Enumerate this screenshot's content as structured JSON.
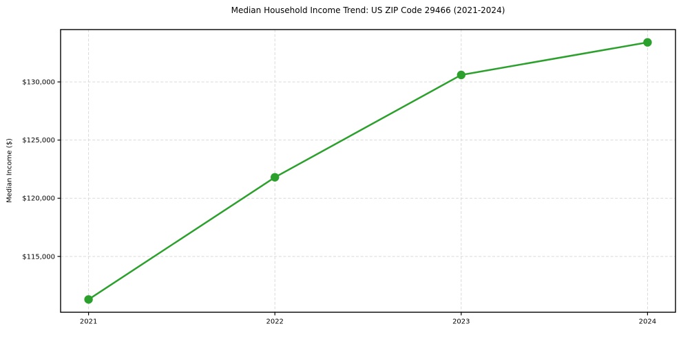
{
  "chart_data": {
    "type": "line",
    "title": "Median Household Income Trend: US ZIP Code 29466 (2021-2024)",
    "xlabel": "",
    "ylabel": "Median Income ($)",
    "x": [
      2021,
      2022,
      2023,
      2024
    ],
    "categories": [
      "2021",
      "2022",
      "2023",
      "2024"
    ],
    "values": [
      111300,
      121800,
      130600,
      133400
    ],
    "xlim": [
      2020.85,
      2024.15
    ],
    "ylim": [
      110200,
      134500
    ],
    "yticks": [
      {
        "value": 115000,
        "label": "$115,000"
      },
      {
        "value": 120000,
        "label": "$120,000"
      },
      {
        "value": 125000,
        "label": "$125,000"
      },
      {
        "value": 130000,
        "label": "$130,000"
      }
    ],
    "line_color": "#2ca02c",
    "marker": "circle",
    "grid": {
      "visible": true,
      "style": "dashed",
      "color": "#d9d9d9"
    },
    "legend_position": "none",
    "axis_color": "#000000",
    "background_color": "#ffffff"
  }
}
